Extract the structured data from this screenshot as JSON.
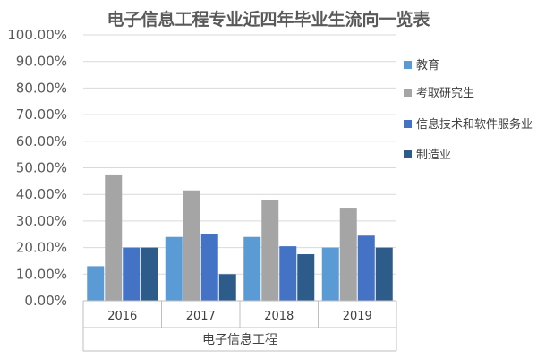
{
  "chart_data": {
    "type": "bar",
    "title": "电子信息工程专业近四年毕业生流向一览表",
    "xlabel": "电子信息工程",
    "ylabel": "",
    "categories": [
      "2016",
      "2017",
      "2018",
      "2019"
    ],
    "ylim": [
      0,
      100
    ],
    "yticks": [
      "0.00%",
      "10.00%",
      "20.00%",
      "30.00%",
      "40.00%",
      "50.00%",
      "60.00%",
      "70.00%",
      "80.00%",
      "90.00%",
      "100.00%"
    ],
    "grid": true,
    "legend_position": "right",
    "series": [
      {
        "name": "教育",
        "color": "#5b9bd5",
        "values": [
          13,
          24,
          24,
          20
        ]
      },
      {
        "name": "考取研究生",
        "color": "#a5a5a5",
        "values": [
          47.5,
          41.5,
          38,
          35
        ]
      },
      {
        "name": "信息技术和软件服务业",
        "color": "#4472c4",
        "values": [
          20,
          25,
          20.5,
          24.5
        ]
      },
      {
        "name": "制造业",
        "color": "#2e5c8a",
        "values": [
          20,
          10,
          17.5,
          20
        ]
      }
    ]
  }
}
